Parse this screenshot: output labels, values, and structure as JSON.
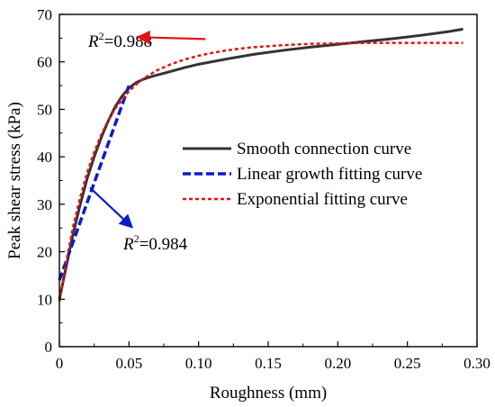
{
  "chart_data": {
    "type": "line",
    "xlabel": "Roughness (mm)",
    "ylabel": "Peak shear stress (kPa)",
    "xlim": [
      0,
      0.3
    ],
    "ylim": [
      0,
      70
    ],
    "xticks": [
      0,
      0.05,
      0.1,
      0.15,
      0.2,
      0.25,
      0.3
    ],
    "xtick_labels": [
      "0",
      "0.05",
      "0.10",
      "0.15",
      "0.20",
      "0.25",
      "0.30"
    ],
    "yticks": [
      0,
      10,
      20,
      30,
      40,
      50,
      60,
      70
    ],
    "ytick_labels": [
      "0",
      "10",
      "20",
      "30",
      "40",
      "50",
      "60",
      "70"
    ],
    "grid": false,
    "legend_position": "center-right",
    "series": [
      {
        "name": "Smooth connection curve",
        "color": "#333333",
        "style": "solid",
        "x": [
          0,
          0.005,
          0.01,
          0.015,
          0.02,
          0.025,
          0.03,
          0.035,
          0.04,
          0.045,
          0.05,
          0.055,
          0.06,
          0.065,
          0.07,
          0.08,
          0.09,
          0.1,
          0.12,
          0.14,
          0.16,
          0.18,
          0.2,
          0.22,
          0.24,
          0.26,
          0.28,
          0.29
        ],
        "y": [
          10,
          17,
          24,
          30,
          35.5,
          40,
          44,
          47.5,
          50.5,
          52.8,
          54.5,
          55.6,
          56.3,
          56.8,
          57.2,
          58,
          58.8,
          59.5,
          60.6,
          61.6,
          62.4,
          63.1,
          63.7,
          64.3,
          64.9,
          65.6,
          66.4,
          66.9
        ]
      },
      {
        "name": "Linear growth fitting curve",
        "color": "#0b1bcc",
        "style": "dashed",
        "x": [
          0,
          0.05
        ],
        "y": [
          14,
          55
        ]
      },
      {
        "name": "Exponential fitting curve",
        "color": "#e11414",
        "style": "dotted",
        "x": [
          0,
          0.005,
          0.01,
          0.015,
          0.02,
          0.025,
          0.03,
          0.035,
          0.04,
          0.045,
          0.05,
          0.055,
          0.06,
          0.07,
          0.08,
          0.09,
          0.1,
          0.11,
          0.12,
          0.13,
          0.14,
          0.16,
          0.18,
          0.2,
          0.22,
          0.24,
          0.26,
          0.28,
          0.29
        ],
        "y": [
          9.5,
          18,
          25.5,
          31.5,
          36.7,
          41,
          44.6,
          47.6,
          50.1,
          52.1,
          53.8,
          55.2,
          56.4,
          58.2,
          59.5,
          60.5,
          61.3,
          61.9,
          62.4,
          62.8,
          63.1,
          63.5,
          63.8,
          63.9,
          64,
          64,
          64,
          64,
          64
        ]
      }
    ],
    "annotations": [
      {
        "text_italic": "R",
        "sup": "2",
        "text": "=0.988",
        "color": "#e11414",
        "arrow_from": [
          0.105,
          64.8
        ],
        "arrow_to": [
          0.058,
          65.2
        ]
      },
      {
        "text_italic": "R",
        "sup": "2",
        "text": "=0.984",
        "color": "#0b1bcc",
        "arrow_from": [
          0.022,
          33.5
        ],
        "arrow_to": [
          0.051,
          25.5
        ]
      }
    ]
  }
}
